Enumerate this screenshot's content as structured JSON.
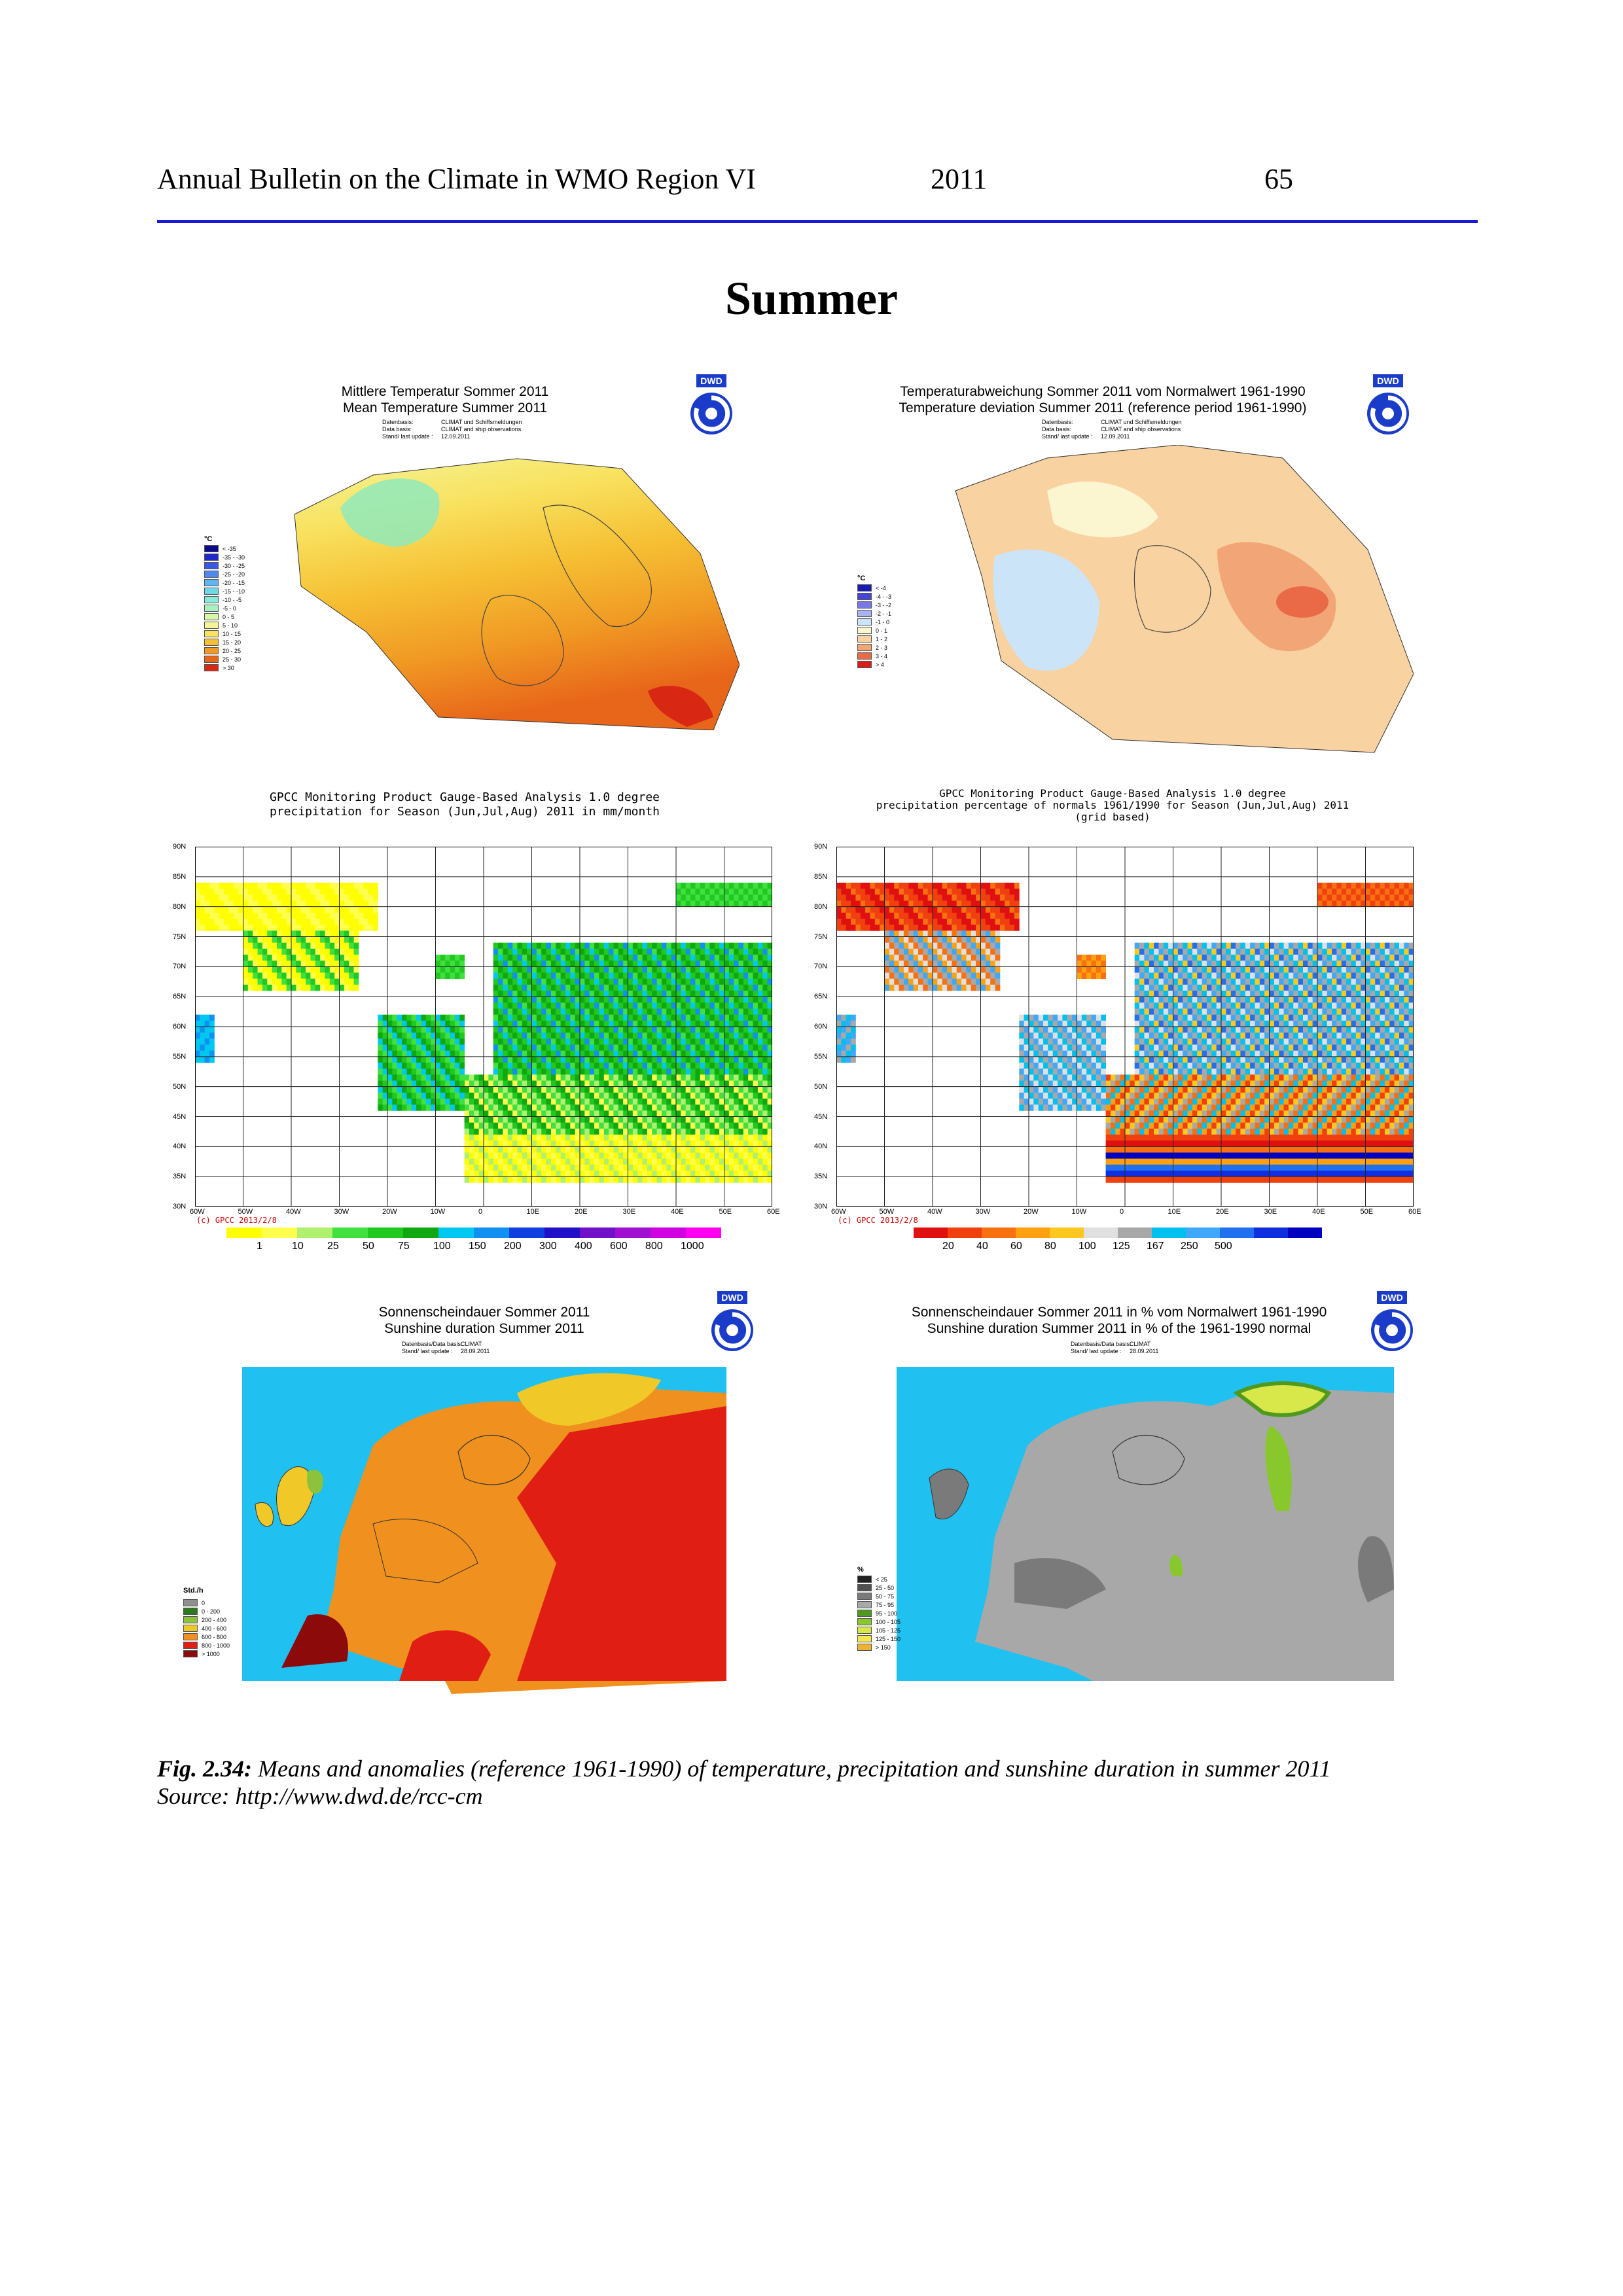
{
  "header": {
    "left": "Annual Bulletin on the Climate in WMO Region VI",
    "year": "2011",
    "page": "65"
  },
  "section_title": "Summer",
  "panels": {
    "mean_temp": {
      "title_de": "Mittlere Temperatur Sommer 2011",
      "title_en": "Mean Temperature Summer 2011",
      "meta": [
        [
          "Datenbasis:",
          "CLIMAT und Schiffsmeldungen"
        ],
        [
          "Data basis:",
          "CLIMAT and ship observations"
        ],
        [
          "Stand/ last update :",
          "12.09.2011"
        ]
      ],
      "logo": "DWD",
      "unit": "°C",
      "legend": [
        {
          "label": "< -35",
          "color": "#0a0a8c"
        },
        {
          "label": "-35 - -30",
          "color": "#1f28c8"
        },
        {
          "label": "-30 - -25",
          "color": "#3a58e6"
        },
        {
          "label": "-25 - -20",
          "color": "#4f88f0"
        },
        {
          "label": "-20 - -15",
          "color": "#5fb4f2"
        },
        {
          "label": "-15 - -10",
          "color": "#6ed8e8"
        },
        {
          "label": "-10 - -5",
          "color": "#88ead8"
        },
        {
          "label": "-5 - 0",
          "color": "#a8f0c0"
        },
        {
          "label": "0 - 5",
          "color": "#d8f6a8"
        },
        {
          "label": "5 - 10",
          "color": "#f4f49a"
        },
        {
          "label": "10 - 15",
          "color": "#f8e260"
        },
        {
          "label": "15 - 20",
          "color": "#f6c034"
        },
        {
          "label": "20 - 25",
          "color": "#f09a24"
        },
        {
          "label": "25 - 30",
          "color": "#e8661a"
        },
        {
          "label": "> 30",
          "color": "#d82814"
        }
      ]
    },
    "temp_dev": {
      "title_de": "Temperaturabweichung Sommer 2011 vom Normalwert 1961-1990",
      "title_en": "Temperature deviation Summer 2011 (reference period 1961-1990)",
      "meta": [
        [
          "Datenbasis:",
          "CLIMAT und Schiffsmeldungen"
        ],
        [
          "Data basis:",
          "CLIMAT and ship observations"
        ],
        [
          "Stand/ last update :",
          "12.09.2011"
        ]
      ],
      "logo": "DWD",
      "unit": "°C",
      "legend": [
        {
          "label": "< -4",
          "color": "#1a1ab4"
        },
        {
          "label": "-4 - -3",
          "color": "#4646d6"
        },
        {
          "label": "-3 - -2",
          "color": "#7878e6"
        },
        {
          "label": "-2 - -1",
          "color": "#a8b4f2"
        },
        {
          "label": "-1 - 0",
          "color": "#cce4f8"
        },
        {
          "label": "0 - 1",
          "color": "#fbf5d0"
        },
        {
          "label": "1 - 2",
          "color": "#f8d2a0"
        },
        {
          "label": "2 - 3",
          "color": "#f2a678"
        },
        {
          "label": "3 - 4",
          "color": "#ea6a48"
        },
        {
          "label": "> 4",
          "color": "#d8201a"
        }
      ]
    },
    "precip": {
      "title1": "GPCC Monitoring Product Gauge-Based Analysis 1.0 degree",
      "title2": "precipitation for Season (Jun,Jul,Aug) 2011 in mm/month",
      "copyright": "(c) GPCC 2013/2/8",
      "lat_labels": [
        "90N",
        "85N",
        "80N",
        "75N",
        "70N",
        "65N",
        "60N",
        "55N",
        "50N",
        "45N",
        "40N",
        "35N",
        "30N"
      ],
      "lon_labels": [
        "60W",
        "50W",
        "40W",
        "30W",
        "20W",
        "10W",
        "0",
        "10E",
        "20E",
        "30E",
        "40E",
        "50E",
        "60E"
      ],
      "colorbar": [
        "#ffff00",
        "#ffff50",
        "#b0f070",
        "#40e040",
        "#20c820",
        "#10a810",
        "#00c8f0",
        "#1090f0",
        "#1040e0",
        "#2010c8",
        "#7010c8",
        "#a010d0",
        "#d000e0",
        "#ff00f0"
      ],
      "colorbar_labels": [
        "1",
        "10",
        "25",
        "50",
        "75",
        "100",
        "150",
        "200",
        "300",
        "400",
        "600",
        "800",
        "1000"
      ]
    },
    "precip_pct": {
      "title1": "GPCC Monitoring Product Gauge-Based Analysis 1.0 degree",
      "title2": "precipitation percentage of normals 1961/1990 for Season (Jun,Jul,Aug) 2011",
      "title3": "(grid based)",
      "copyright": "(c) GPCC 2013/2/8",
      "lat_labels": [
        "90N",
        "85N",
        "80N",
        "75N",
        "70N",
        "65N",
        "60N",
        "55N",
        "50N",
        "45N",
        "40N",
        "35N",
        "30N"
      ],
      "lon_labels": [
        "60W",
        "50W",
        "40W",
        "30W",
        "20W",
        "10W",
        "0",
        "10E",
        "20E",
        "30E",
        "40E",
        "50E",
        "60E"
      ],
      "colorbar": [
        "#e01010",
        "#f04010",
        "#f87010",
        "#ffa010",
        "#ffc820",
        "#e0e0e0",
        "#a8a8a8",
        "#00c0f0",
        "#40a8f8",
        "#2070f0",
        "#1030e0",
        "#0000c0"
      ],
      "colorbar_labels": [
        "20",
        "40",
        "60",
        "80",
        "100",
        "125",
        "167",
        "250",
        "500"
      ]
    },
    "sunshine": {
      "title_de": "Sonnenscheindauer Sommer 2011",
      "title_en": "Sunshine duration Summer 2011",
      "meta": [
        [
          "Datenbasis/Data basis:",
          "CLIMAT"
        ],
        [
          "Stand/ last update :",
          "28.09.2011"
        ]
      ],
      "logo": "DWD",
      "unit": "Std./h",
      "legend": [
        {
          "label": "0",
          "color": "#909090"
        },
        {
          "label": "0 - 200",
          "color": "#2c7a1c"
        },
        {
          "label": "200 - 400",
          "color": "#8cc23c"
        },
        {
          "label": "400 - 600",
          "color": "#f0c828"
        },
        {
          "label": "600 - 800",
          "color": "#f0901e"
        },
        {
          "label": "800 - 1000",
          "color": "#e01e14"
        },
        {
          "label": "> 1000",
          "color": "#8c0a0a"
        }
      ]
    },
    "sunshine_pct": {
      "title_de": "Sonnenscheindauer Sommer 2011 in % vom Normalwert 1961-1990",
      "title_en": "Sunshine duration Summer 2011 in % of the 1961-1990 normal",
      "meta": [
        [
          "Datenbasis/Data basis:",
          "CLIMAT"
        ],
        [
          "Stand/ last update :",
          "28.09.2011"
        ]
      ],
      "logo": "DWD",
      "unit": "%",
      "legend": [
        {
          "label": "< 25",
          "color": "#202020"
        },
        {
          "label": "25 - 50",
          "color": "#505050"
        },
        {
          "label": "50 - 75",
          "color": "#7a7a7a"
        },
        {
          "label": "75 - 95",
          "color": "#a8a8a8"
        },
        {
          "label": "95 - 100",
          "color": "#4f9a1e"
        },
        {
          "label": "100 - 105",
          "color": "#88c82c"
        },
        {
          "label": "105 - 125",
          "color": "#d8e84a"
        },
        {
          "label": "125 - 150",
          "color": "#f6e650"
        },
        {
          "label": "> 150",
          "color": "#f0b030"
        }
      ]
    }
  },
  "caption": {
    "fig": "Fig. 2.34:",
    "text": " Means and anomalies (reference 1961-1990) of temperature, precipitation and sunshine duration in summer 2011",
    "source": "Source: http://www.dwd.de/rcc-cm"
  }
}
